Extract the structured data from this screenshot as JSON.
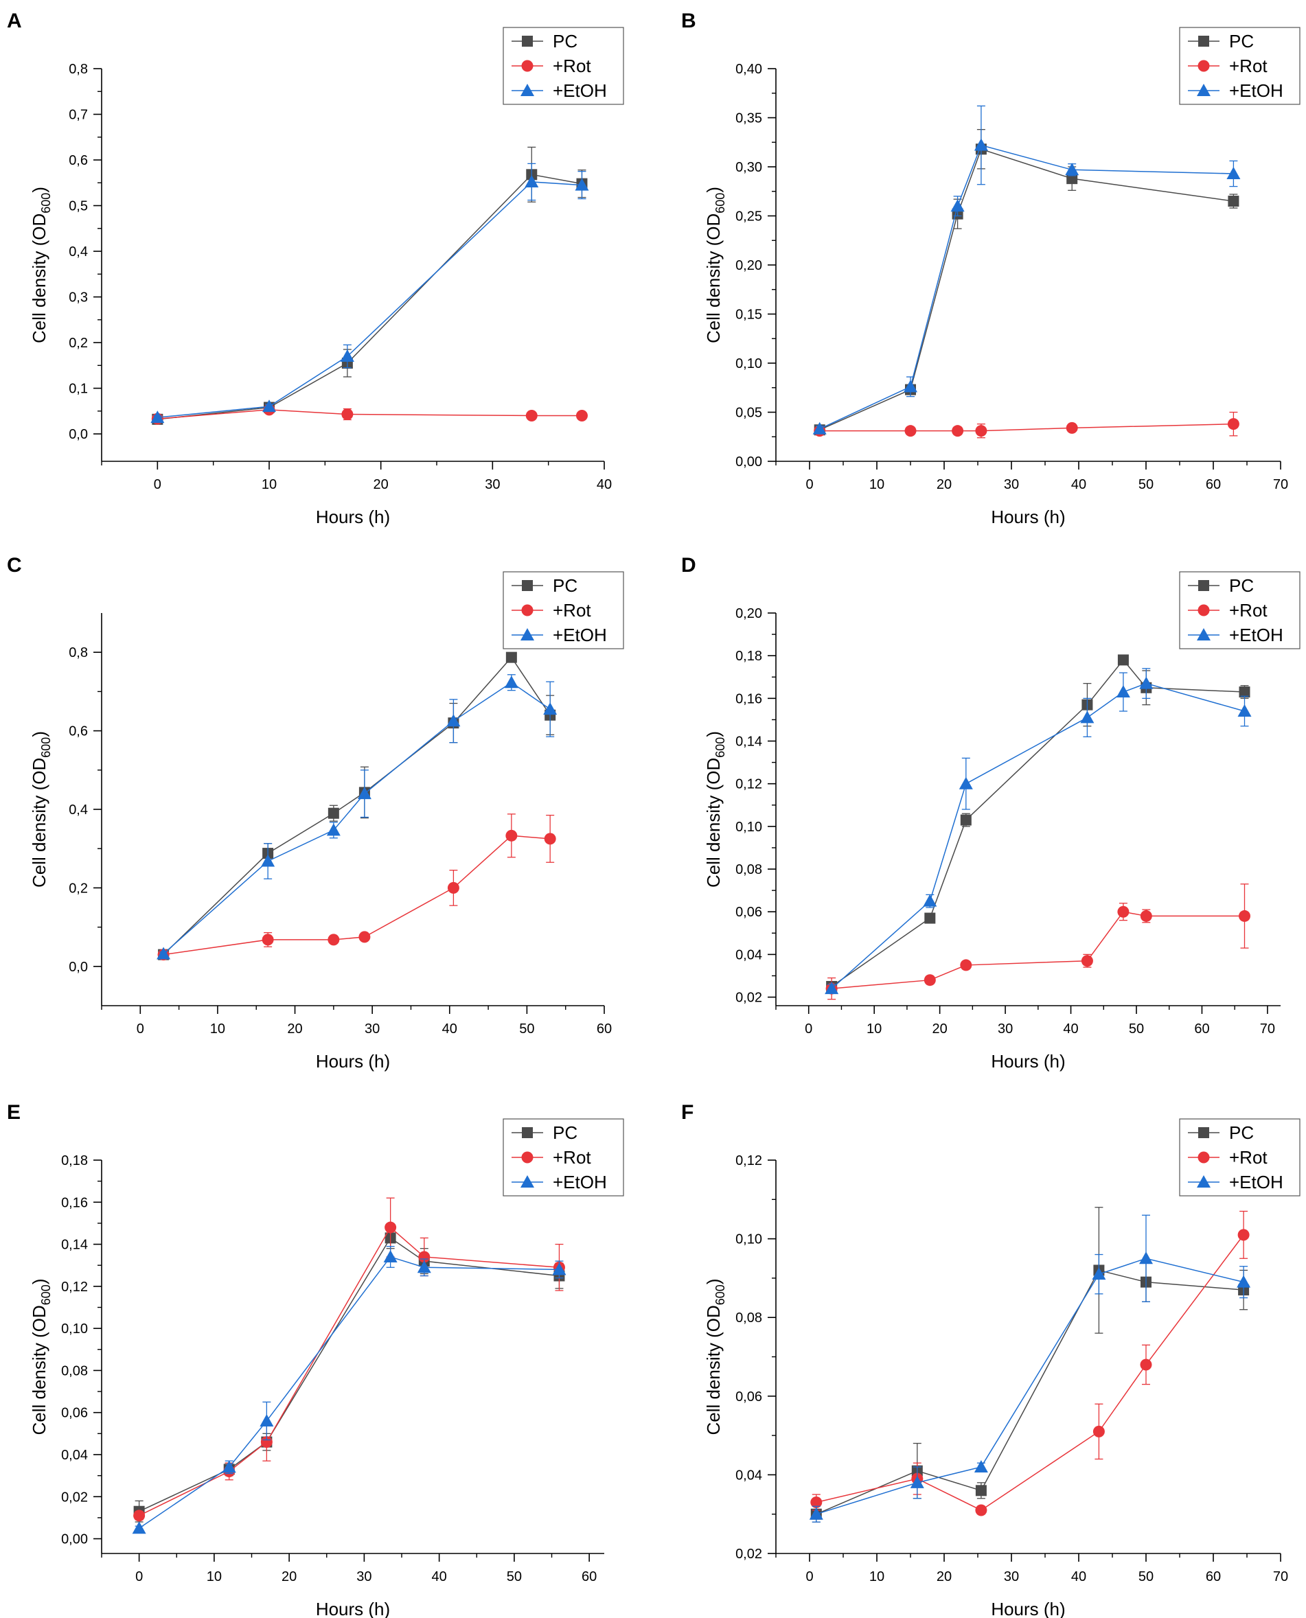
{
  "figure": {
    "series_names": [
      "PC",
      "+Rot",
      "+EtOH"
    ],
    "colors": {
      "PC": "#4a4a4a",
      "+Rot": "#e8353a",
      "+EtOH": "#1f6fd1",
      "axis": "#000000"
    }
  },
  "chart_data": [
    {
      "panel": "A",
      "type": "line",
      "xlabel": "Hours (h)",
      "ylabel": "Cell density (OD",
      "ylabel_sub": "600",
      "ylabel_end": ")",
      "xlim": [
        -5,
        40
      ],
      "ylim": [
        -0.06,
        0.8
      ],
      "xticks": [
        0,
        10,
        20,
        30,
        40
      ],
      "xtick_labels": [
        "0",
        "10",
        "20",
        "30",
        "40"
      ],
      "yticks": [
        0,
        0.1,
        0.2,
        0.3,
        0.4,
        0.5,
        0.6,
        0.7,
        0.8
      ],
      "ytick_labels": [
        "0,0",
        "0,1",
        "0,2",
        "0,3",
        "0,4",
        "0,5",
        "0,6",
        "0,7",
        "0,8"
      ],
      "legend": {
        "position": "top-right",
        "labels": [
          "PC",
          "+Rot",
          "+EtOH"
        ]
      },
      "series": [
        {
          "name": "PC",
          "marker": "square",
          "x": [
            0,
            10,
            17,
            33.5,
            38
          ],
          "y": [
            0.032,
            0.058,
            0.155,
            0.568,
            0.548
          ],
          "err": [
            0.004,
            0.005,
            0.03,
            0.06,
            0.03
          ]
        },
        {
          "name": "+Rot",
          "marker": "circle",
          "x": [
            0,
            10,
            17,
            33.5,
            38
          ],
          "y": [
            0.033,
            0.053,
            0.043,
            0.04,
            0.04
          ],
          "err": [
            0.003,
            0.006,
            0.012,
            0.004,
            0.003
          ]
        },
        {
          "name": "+EtOH",
          "marker": "triangle",
          "x": [
            0,
            10,
            17,
            33.5,
            38
          ],
          "y": [
            0.036,
            0.06,
            0.17,
            0.552,
            0.545
          ],
          "err": [
            0.004,
            0.005,
            0.025,
            0.04,
            0.03
          ]
        }
      ]
    },
    {
      "panel": "B",
      "type": "line",
      "xlabel": "Hours (h)",
      "ylabel": "Cell density (OD",
      "ylabel_sub": "600",
      "ylabel_end": ")",
      "xlim": [
        -5,
        70
      ],
      "ylim": [
        0,
        0.4
      ],
      "xticks": [
        0,
        10,
        20,
        30,
        40,
        50,
        60,
        70
      ],
      "xtick_labels": [
        "0",
        "10",
        "20",
        "30",
        "40",
        "50",
        "60",
        "70"
      ],
      "yticks": [
        0,
        0.05,
        0.1,
        0.15,
        0.2,
        0.25,
        0.3,
        0.35,
        0.4
      ],
      "ytick_labels": [
        "0,00",
        "0,05",
        "0,10",
        "0,15",
        "0,20",
        "0,25",
        "0,30",
        "0,35",
        "0,40"
      ],
      "legend": {
        "position": "top-right",
        "labels": [
          "PC",
          "+Rot",
          "+EtOH"
        ]
      },
      "series": [
        {
          "name": "PC",
          "marker": "square",
          "x": [
            1.5,
            15,
            22,
            25.5,
            39,
            63
          ],
          "y": [
            0.032,
            0.073,
            0.252,
            0.318,
            0.288,
            0.265
          ],
          "err": [
            0.003,
            0.005,
            0.015,
            0.02,
            0.012,
            0.007
          ]
        },
        {
          "name": "+Rot",
          "marker": "circle",
          "x": [
            1.5,
            15,
            22,
            25.5,
            39,
            63
          ],
          "y": [
            0.031,
            0.031,
            0.031,
            0.031,
            0.034,
            0.038
          ],
          "err": [
            0.002,
            0.002,
            0.003,
            0.007,
            0.003,
            0.012
          ]
        },
        {
          "name": "+EtOH",
          "marker": "triangle",
          "x": [
            1.5,
            15,
            22,
            25.5,
            39,
            63
          ],
          "y": [
            0.033,
            0.076,
            0.26,
            0.322,
            0.297,
            0.293
          ],
          "err": [
            0.003,
            0.01,
            0.01,
            0.04,
            0.006,
            0.013
          ]
        }
      ]
    },
    {
      "panel": "C",
      "type": "line",
      "xlabel": "Hours (h)",
      "ylabel": "Cell density (OD",
      "ylabel_sub": "600",
      "ylabel_end": ")",
      "xlim": [
        -5,
        60
      ],
      "ylim": [
        -0.1,
        0.9
      ],
      "xticks": [
        0,
        10,
        20,
        30,
        40,
        50,
        60
      ],
      "xtick_labels": [
        "0",
        "10",
        "20",
        "30",
        "40",
        "50",
        "60"
      ],
      "yticks": [
        0,
        0.2,
        0.4,
        0.6,
        0.8
      ],
      "ytick_labels": [
        "0,0",
        "0,2",
        "0,4",
        "0,6",
        "0,8"
      ],
      "legend": {
        "position": "top-right",
        "labels": [
          "PC",
          "+Rot",
          "+EtOH"
        ]
      },
      "series": [
        {
          "name": "PC",
          "marker": "square",
          "x": [
            3,
            16.5,
            25,
            29,
            40.5,
            48,
            53
          ],
          "y": [
            0.03,
            0.288,
            0.39,
            0.443,
            0.62,
            0.787,
            0.64
          ],
          "err": [
            0.005,
            0.025,
            0.02,
            0.065,
            0.05,
            0.01,
            0.05
          ]
        },
        {
          "name": "+Rot",
          "marker": "circle",
          "x": [
            3,
            16.5,
            25,
            29,
            40.5,
            48,
            53
          ],
          "y": [
            0.03,
            0.068,
            0.068,
            0.075,
            0.2,
            0.333,
            0.325
          ],
          "err": [
            0.004,
            0.018,
            0.006,
            0.008,
            0.045,
            0.055,
            0.06
          ]
        },
        {
          "name": "+EtOH",
          "marker": "triangle",
          "x": [
            3,
            16.5,
            25,
            29,
            40.5,
            48,
            53
          ],
          "y": [
            0.032,
            0.268,
            0.347,
            0.44,
            0.625,
            0.723,
            0.655
          ],
          "err": [
            0.005,
            0.045,
            0.02,
            0.06,
            0.055,
            0.02,
            0.07
          ]
        }
      ]
    },
    {
      "panel": "D",
      "type": "line",
      "xlabel": "Hours (h)",
      "ylabel": "Cell density (OD",
      "ylabel_sub": "600",
      "ylabel_end": ")",
      "xlim": [
        -5,
        72
      ],
      "ylim": [
        0.016,
        0.2
      ],
      "xticks": [
        0,
        10,
        20,
        30,
        40,
        50,
        60,
        70
      ],
      "xtick_labels": [
        "0",
        "10",
        "20",
        "30",
        "40",
        "50",
        "60",
        "70"
      ],
      "yticks": [
        0.02,
        0.04,
        0.06,
        0.08,
        0.1,
        0.12,
        0.14,
        0.16,
        0.18,
        0.2
      ],
      "ytick_labels": [
        "0,02",
        "0,04",
        "0,06",
        "0,08",
        "0,10",
        "0,12",
        "0,14",
        "0,16",
        "0,18",
        "0,20"
      ],
      "legend": {
        "position": "top-right",
        "labels": [
          "PC",
          "+Rot",
          "+EtOH"
        ]
      },
      "series": [
        {
          "name": "PC",
          "marker": "square",
          "x": [
            3.5,
            18.5,
            24,
            42.5,
            48,
            51.5,
            66.5
          ],
          "y": [
            0.025,
            0.057,
            0.103,
            0.157,
            0.178,
            0.165,
            0.163
          ],
          "err": [
            0.002,
            0.001,
            0.003,
            0.01,
            0.002,
            0.008,
            0.003
          ]
        },
        {
          "name": "+Rot",
          "marker": "circle",
          "x": [
            3.5,
            18.5,
            24,
            42.5,
            48,
            51.5,
            66.5
          ],
          "y": [
            0.024,
            0.028,
            0.035,
            0.037,
            0.06,
            0.058,
            0.058
          ],
          "err": [
            0.005,
            0.001,
            0.001,
            0.003,
            0.004,
            0.003,
            0.015
          ]
        },
        {
          "name": "+EtOH",
          "marker": "triangle",
          "x": [
            3.5,
            18.5,
            24,
            42.5,
            48,
            51.5,
            66.5
          ],
          "y": [
            0.024,
            0.065,
            0.12,
            0.151,
            0.163,
            0.167,
            0.154
          ],
          "err": [
            0.002,
            0.003,
            0.012,
            0.009,
            0.009,
            0.007,
            0.007
          ]
        }
      ]
    },
    {
      "panel": "E",
      "type": "line",
      "xlabel": "Hours (h)",
      "ylabel": "Cell density (OD",
      "ylabel_sub": "600",
      "ylabel_end": ")",
      "xlim": [
        -5,
        62
      ],
      "ylim": [
        -0.007,
        0.18
      ],
      "xticks": [
        0,
        10,
        20,
        30,
        40,
        50,
        60
      ],
      "xtick_labels": [
        "0",
        "10",
        "20",
        "30",
        "40",
        "50",
        "60"
      ],
      "yticks": [
        0,
        0.02,
        0.04,
        0.06,
        0.08,
        0.1,
        0.12,
        0.14,
        0.16,
        0.18
      ],
      "ytick_labels": [
        "0,00",
        "0,02",
        "0,04",
        "0,06",
        "0,08",
        "0,10",
        "0,12",
        "0,14",
        "0,16",
        "0,18"
      ],
      "legend": {
        "position": "top-right",
        "labels": [
          "PC",
          "+Rot",
          "+EtOH"
        ]
      },
      "series": [
        {
          "name": "PC",
          "marker": "square",
          "x": [
            0,
            12,
            17,
            33.5,
            38,
            56
          ],
          "y": [
            0.013,
            0.033,
            0.046,
            0.143,
            0.132,
            0.125
          ],
          "err": [
            0.005,
            0.003,
            0.004,
            0.005,
            0.006,
            0.006
          ]
        },
        {
          "name": "+Rot",
          "marker": "circle",
          "x": [
            0,
            12,
            17,
            33.5,
            38,
            56
          ],
          "y": [
            0.011,
            0.032,
            0.046,
            0.148,
            0.134,
            0.129
          ],
          "err": [
            0.002,
            0.004,
            0.009,
            0.014,
            0.009,
            0.011
          ]
        },
        {
          "name": "+EtOH",
          "marker": "triangle",
          "x": [
            0,
            12,
            17,
            33.5,
            38,
            56
          ],
          "y": [
            0.005,
            0.034,
            0.056,
            0.134,
            0.129,
            0.128
          ],
          "err": [
            0.001,
            0.003,
            0.009,
            0.005,
            0.004,
            0.004
          ]
        }
      ]
    },
    {
      "panel": "F",
      "type": "line",
      "xlabel": "Hours (h)",
      "ylabel": "Cell density (OD",
      "ylabel_sub": "600",
      "ylabel_end": ")",
      "xlim": [
        -5,
        70
      ],
      "ylim": [
        0.02,
        0.12
      ],
      "xticks": [
        0,
        10,
        20,
        30,
        40,
        50,
        60,
        70
      ],
      "xtick_labels": [
        "0",
        "10",
        "20",
        "30",
        "40",
        "50",
        "60",
        "70"
      ],
      "yticks": [
        0.02,
        0.04,
        0.06,
        0.08,
        0.1,
        0.12
      ],
      "ytick_labels": [
        "0,02",
        "0,04",
        "0,06",
        "0,08",
        "0,10",
        "0,12"
      ],
      "legend": {
        "position": "top-right",
        "labels": [
          "PC",
          "+Rot",
          "+EtOH"
        ]
      },
      "series": [
        {
          "name": "PC",
          "marker": "square",
          "x": [
            1,
            16,
            25.5,
            43,
            50,
            64.5
          ],
          "y": [
            0.03,
            0.041,
            0.036,
            0.092,
            0.089,
            0.087
          ],
          "err": [
            0.002,
            0.007,
            0.002,
            0.016,
            0.005,
            0.005
          ]
        },
        {
          "name": "+Rot",
          "marker": "circle",
          "x": [
            1,
            16,
            25.5,
            43,
            50,
            64.5
          ],
          "y": [
            0.033,
            0.039,
            0.031,
            0.051,
            0.068,
            0.101
          ],
          "err": [
            0.002,
            0.004,
            0.001,
            0.007,
            0.005,
            0.006
          ]
        },
        {
          "name": "+EtOH",
          "marker": "triangle",
          "x": [
            1,
            16,
            25.5,
            43,
            50,
            64.5
          ],
          "y": [
            0.03,
            0.038,
            0.042,
            0.091,
            0.095,
            0.089
          ],
          "err": [
            0.002,
            0.004,
            0.001,
            0.005,
            0.011,
            0.004
          ]
        }
      ]
    }
  ]
}
